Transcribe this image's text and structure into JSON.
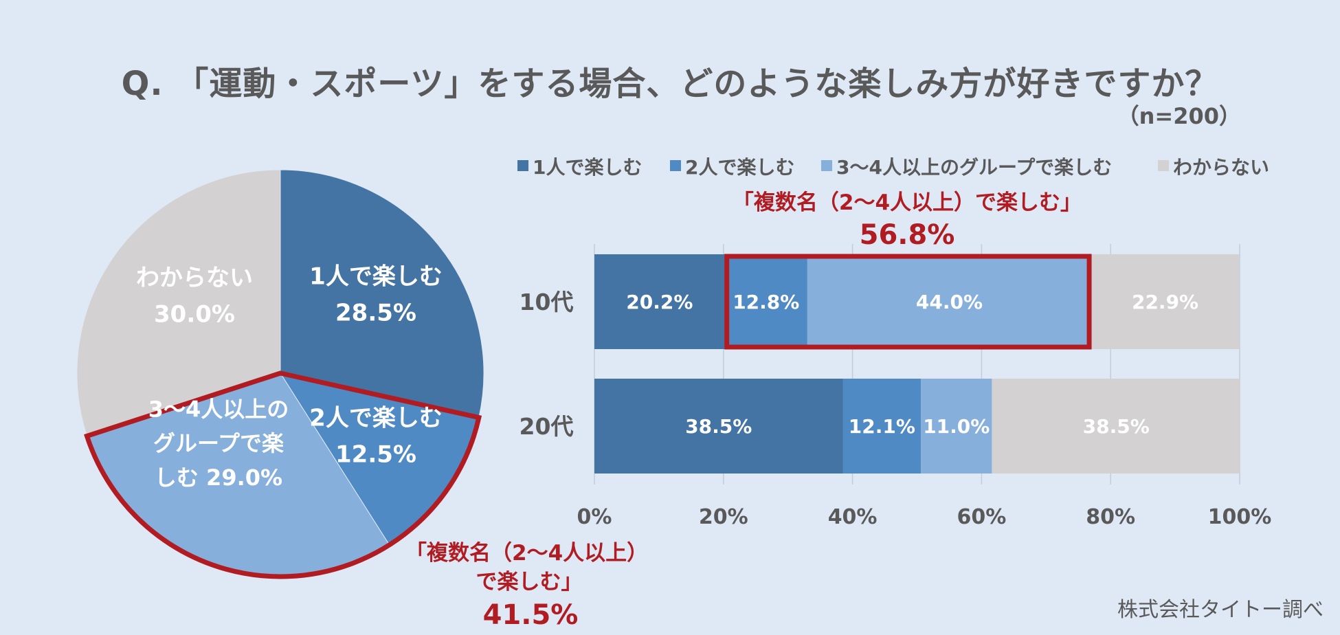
{
  "title": "Q. 「運動・スポーツ」をする場合、どのような楽しみ方が好きですか？",
  "sample_size": "（n=200）",
  "source": "株式会社タイトー調べ",
  "colors": {
    "solo": "#4474a3",
    "pair": "#4f8ac4",
    "group": "#86afdc",
    "unknown": "#d3d1d1",
    "highlight": "#b01c22"
  },
  "pie_callout": {
    "line1": "「複数名（2〜4人以上）",
    "line2": "で楽しむ」",
    "value": "41.5%"
  },
  "bar_callout": {
    "line1": "「複数名（2〜4人以上）で楽しむ」",
    "value": "56.8%"
  },
  "chart_data": [
    {
      "type": "pie",
      "slices": [
        {
          "label": "1人で楽しむ",
          "value": 28.5,
          "text": [
            "1人で楽しむ",
            "28.5%"
          ]
        },
        {
          "label": "2人で楽しむ",
          "value": 12.5,
          "text": [
            "2人で楽しむ",
            "12.5%"
          ]
        },
        {
          "label": "3〜4人以上のグループで楽しむ",
          "value": 29.0,
          "text": [
            "3〜4人以上の",
            "グループで楽",
            "しむ 29.0%"
          ]
        },
        {
          "label": "わからない",
          "value": 30.0,
          "text": [
            "わからない",
            "30.0%"
          ]
        }
      ]
    },
    {
      "type": "bar",
      "stacked": true,
      "orientation": "horizontal",
      "categories": [
        "10代",
        "20代"
      ],
      "series": [
        {
          "name": "1人で楽しむ",
          "values": [
            20.2,
            38.5
          ]
        },
        {
          "name": "2人で楽しむ",
          "values": [
            12.8,
            12.1
          ]
        },
        {
          "name": "3〜4人以上のグループで楽しむ",
          "values": [
            44.0,
            11.0
          ]
        },
        {
          "name": "わからない",
          "values": [
            22.9,
            38.5
          ]
        }
      ],
      "xlim": [
        0,
        100
      ],
      "xticks": [
        "0%",
        "20%",
        "40%",
        "60%",
        "80%",
        "100%"
      ],
      "grid": true,
      "legend": "top"
    }
  ]
}
